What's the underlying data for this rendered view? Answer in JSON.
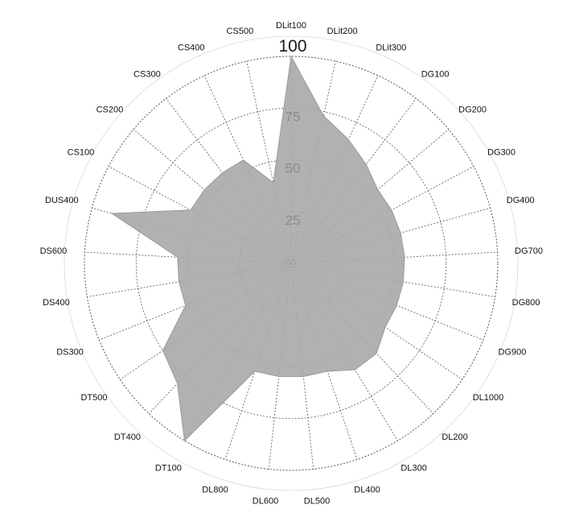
{
  "chart_data": {
    "type": "radar",
    "categories": [
      "DLit100",
      "DLit200",
      "DLit300",
      "DG100",
      "DG200",
      "DG300",
      "DG400",
      "DG700",
      "DG800",
      "DG900",
      "DL1000",
      "DL200",
      "DL300",
      "DL400",
      "DL500",
      "DL600",
      "DL800",
      "DT100",
      "DT400",
      "DT500",
      "DS300",
      "DS400",
      "DS600",
      "DUS400",
      "CS100",
      "CS200",
      "CS300",
      "CS400",
      "CS500"
    ],
    "series": [
      {
        "values": [
          100,
          73,
          66,
          60,
          55,
          55,
          55,
          55,
          55,
          55,
          55,
          60,
          60,
          55,
          55,
          55,
          55,
          100,
          80,
          75,
          55,
          55,
          55,
          90,
          55,
          55,
          55,
          55,
          40
        ]
      }
    ],
    "rlim": [
      0,
      100
    ],
    "ticks": [
      "25",
      "50",
      "75",
      "100"
    ],
    "colors": {
      "fill": "#a9a9a9",
      "stroke": "#9a9a9a",
      "grid": "#555555"
    },
    "grid": true
  }
}
